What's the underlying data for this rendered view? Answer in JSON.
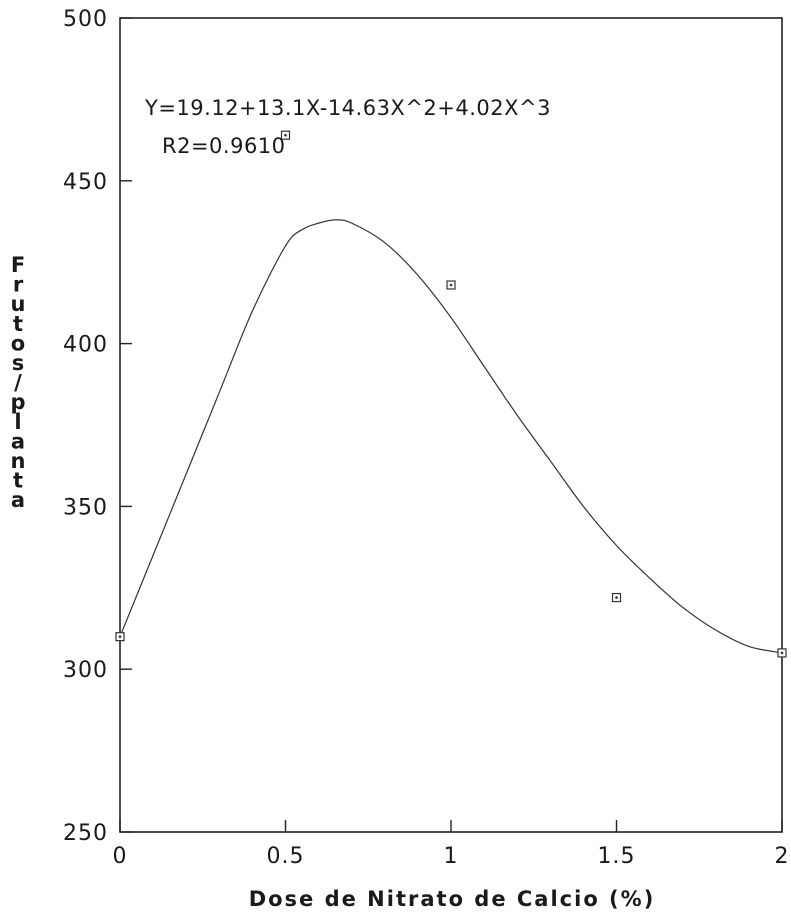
{
  "chart_data": {
    "type": "scatter",
    "title": "",
    "xlabel": "Dose de Nitrato de Calcio (%)",
    "ylabel": "Frutos/planta",
    "xlim": [
      0,
      2
    ],
    "ylim": [
      250,
      500
    ],
    "x_ticks": [
      "0",
      "0.5",
      "1",
      "1.5",
      "2"
    ],
    "y_ticks": [
      "250",
      "300",
      "350",
      "400",
      "450",
      "500"
    ],
    "grid": false,
    "annotations": [
      "Y=19.12+13.1X-14.63X^2+4.02X^3",
      "R2=0.9610"
    ],
    "series": [
      {
        "type": "scatter",
        "x": [
          0,
          0.5,
          1,
          1.5,
          2
        ],
        "y": [
          310,
          464,
          418,
          322,
          305
        ]
      },
      {
        "type": "line",
        "x": [
          0,
          0.1,
          0.2,
          0.3,
          0.4,
          0.5,
          0.55,
          0.6,
          0.65,
          0.7,
          0.8,
          0.9,
          1.0,
          1.1,
          1.2,
          1.3,
          1.4,
          1.5,
          1.6,
          1.7,
          1.8,
          1.9,
          2.0
        ],
        "y": [
          310,
          335,
          360,
          385,
          410,
          430,
          435,
          437,
          438,
          437,
          431,
          421,
          408,
          393,
          378,
          364,
          350,
          338,
          328,
          319,
          312,
          307,
          305
        ]
      }
    ]
  }
}
